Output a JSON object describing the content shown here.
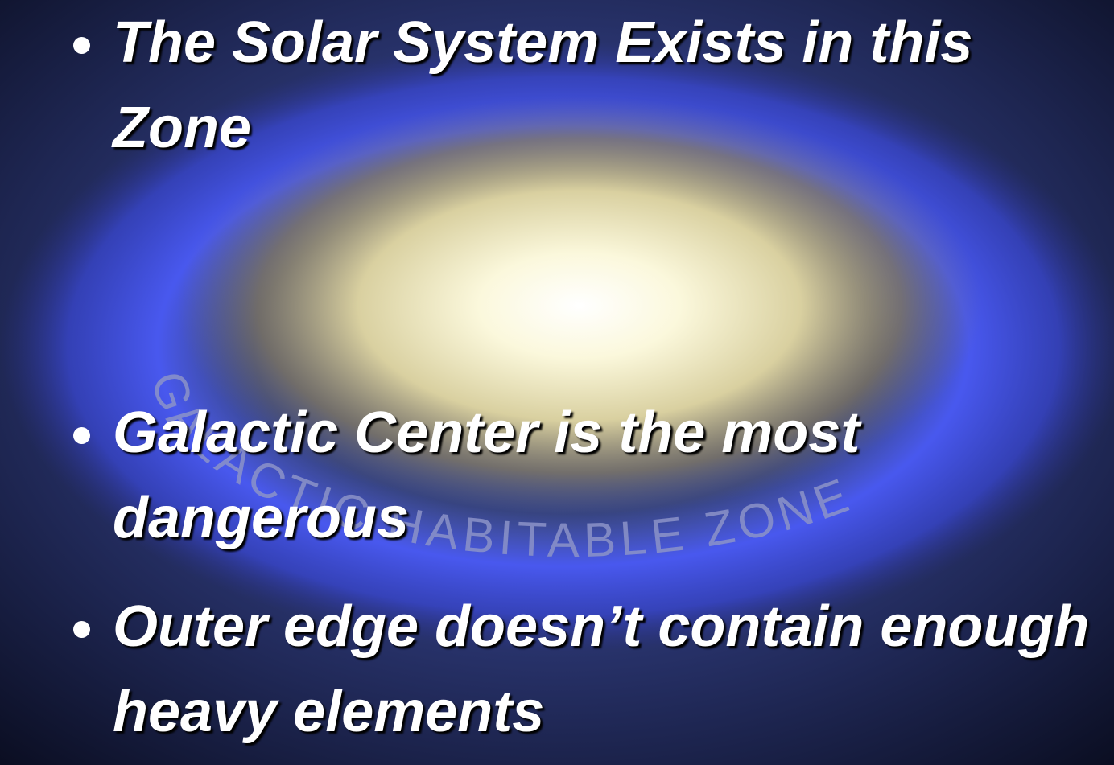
{
  "image_label": "GALACTIC HABITABLE ZONE",
  "bullets": [
    "The Solar System Exists in this Zone",
    "Galactic Center is the most dangerous",
    "Outer edge doesn’t contain enough heavy elements"
  ]
}
